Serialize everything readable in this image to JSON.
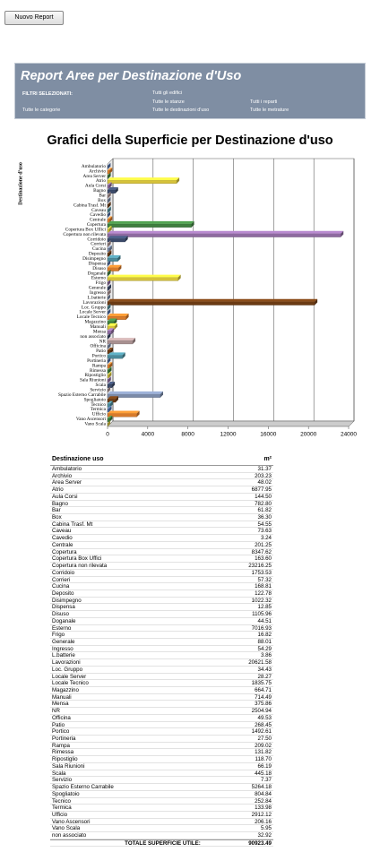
{
  "button": "Nuovo Report",
  "header": {
    "title": "Report Aree per Destinazione d'Uso",
    "filters_label": "FILTRI SELEZIONATI:",
    "filters": [
      "Tutti gli edifici",
      "Tutte le stanze",
      "Tutti i reparti",
      "Tutte le categorie",
      "Tutte le destinazioni d'uso",
      "Tutte le metrature"
    ]
  },
  "chart_data": {
    "type": "hbar3d",
    "title": "Grafici della Superficie per Destinazione d'uso",
    "ylabel": "Destinazione d'uso",
    "categories": [
      "Ambulatorio",
      "Archivio",
      "Area Server",
      "Atrio",
      "Aula Corsi",
      "Bagno",
      "Bar",
      "Box",
      "Cabina Trasf. Mt",
      "Caveau",
      "Cavedio",
      "Centrale",
      "Copertura",
      "Copertura Box Uffici",
      "Copertura non rilevata",
      "Corridoio",
      "Corrieri",
      "Cucina",
      "Deposito",
      "Disimpegno",
      "Dispensa",
      "Disuso",
      "Doganale",
      "Esterno",
      "Frigo",
      "Generale",
      "Ingresso",
      "L.batterie",
      "Lavorazioni",
      "Loc. Gruppo",
      "Locale Server",
      "Locale Tecnico",
      "Magazzino",
      "Manuali",
      "Mensa",
      "non associato",
      "NR",
      "Officina",
      "Patio",
      "Portico",
      "Portineria",
      "Rampa",
      "Rimessa",
      "Ripostiglio",
      "Sala Riunioni",
      "Scala",
      "Servizio",
      "Spazio Esterno Carrabile",
      "Spogliatoio",
      "Tecnico",
      "Termica",
      "Ufficio",
      "Vano Ascensori",
      "Vano Scala"
    ],
    "values": [
      31.37,
      203.23,
      48.02,
      6877.95,
      144.5,
      782.8,
      61.82,
      36.3,
      54.55,
      73.63,
      3.24,
      201.25,
      8347.62,
      163.6,
      23216.25,
      1753.53,
      57.32,
      168.81,
      122.78,
      1022.32,
      12.85,
      1105.96,
      44.51,
      7016.93,
      16.82,
      88.01,
      54.29,
      3.86,
      20621.58,
      34.43,
      28.27,
      1835.75,
      664.71,
      714.49,
      375.86,
      32.92,
      2504.94,
      49.53,
      268.45,
      1492.61,
      27.5,
      209.02,
      131.82,
      118.7,
      66.19,
      445.18,
      7.37,
      5264.18,
      804.84,
      252.84,
      133.98,
      2912.12,
      206.16,
      5.95
    ],
    "palette": [
      "#4f6fa8",
      "#d77a2a",
      "#3f7f3f",
      "#d6c23a",
      "#8e6aa0",
      "#3b4a6a",
      "#a89090",
      "#7a8aa8",
      "#6b3b14",
      "#4a8a9a"
    ],
    "xlim": [
      0,
      24000
    ],
    "xticks": [
      0,
      4000,
      8000,
      12000,
      16000,
      20000,
      24000
    ],
    "grid": true
  },
  "table": {
    "header": [
      "Destinazione uso",
      "m²"
    ],
    "rows": [
      [
        "Ambulatorio",
        "31.37"
      ],
      [
        "Archivio",
        "203.23"
      ],
      [
        "Area Server",
        "48.02"
      ],
      [
        "Atrio",
        "6877.95"
      ],
      [
        "Aula Corsi",
        "144.50"
      ],
      [
        "Bagno",
        "782.80"
      ],
      [
        "Bar",
        "61.82"
      ],
      [
        "Box",
        "36.30"
      ],
      [
        "Cabina Trasf. Mt",
        "54.55"
      ],
      [
        "Caveau",
        "73.63"
      ],
      [
        "Cavedio",
        "3.24"
      ],
      [
        "Centrale",
        "201.25"
      ],
      [
        "Copertura",
        "8347.62"
      ],
      [
        "Copertura Box Uffici",
        "163.60"
      ],
      [
        "Copertura non rilevata",
        "23216.25"
      ],
      [
        "Corridoio",
        "1753.53"
      ],
      [
        "Corrieri",
        "57.32"
      ],
      [
        "Cucina",
        "168.81"
      ],
      [
        "Deposito",
        "122.78"
      ],
      [
        "Disimpegno",
        "1022.32"
      ],
      [
        "Dispensa",
        "12.85"
      ],
      [
        "Disuso",
        "1105.96"
      ],
      [
        "Doganale",
        "44.51"
      ],
      [
        "Esterno",
        "7016.93"
      ],
      [
        "Frigo",
        "16.82"
      ],
      [
        "Generale",
        "88.01"
      ],
      [
        "Ingresso",
        "54.29"
      ],
      [
        "L.batterie",
        "3.86"
      ],
      [
        "Lavorazioni",
        "20621.58"
      ],
      [
        "Loc. Gruppo",
        "34.43"
      ],
      [
        "Locale Server",
        "28.27"
      ],
      [
        "Locale Tecnico",
        "1835.75"
      ],
      [
        "Magazzino",
        "664.71"
      ],
      [
        "Manuali",
        "714.49"
      ],
      [
        "Mensa",
        "375.86"
      ],
      [
        "NR",
        "2504.94"
      ],
      [
        "Officina",
        "49.53"
      ],
      [
        "Patio",
        "268.45"
      ],
      [
        "Portico",
        "1492.61"
      ],
      [
        "Portineria",
        "27.50"
      ],
      [
        "Rampa",
        "209.02"
      ],
      [
        "Rimessa",
        "131.82"
      ],
      [
        "Ripostiglio",
        "118.70"
      ],
      [
        "Sala Riunioni",
        "66.19"
      ],
      [
        "Scala",
        "445.18"
      ],
      [
        "Servizio",
        "7.37"
      ],
      [
        "Spazio Esterno Carrabile",
        "5264.18"
      ],
      [
        "Spogliatoio",
        "804.84"
      ],
      [
        "Tecnico",
        "252.84"
      ],
      [
        "Termica",
        "133.98"
      ],
      [
        "Ufficio",
        "2912.12"
      ],
      [
        "Vano Ascensori",
        "206.16"
      ],
      [
        "Vano Scala",
        "5.95"
      ],
      [
        "non associato",
        "32.92"
      ]
    ],
    "total": [
      "TOTALE SUPERFICIE UTILE:",
      "90923.49"
    ]
  }
}
